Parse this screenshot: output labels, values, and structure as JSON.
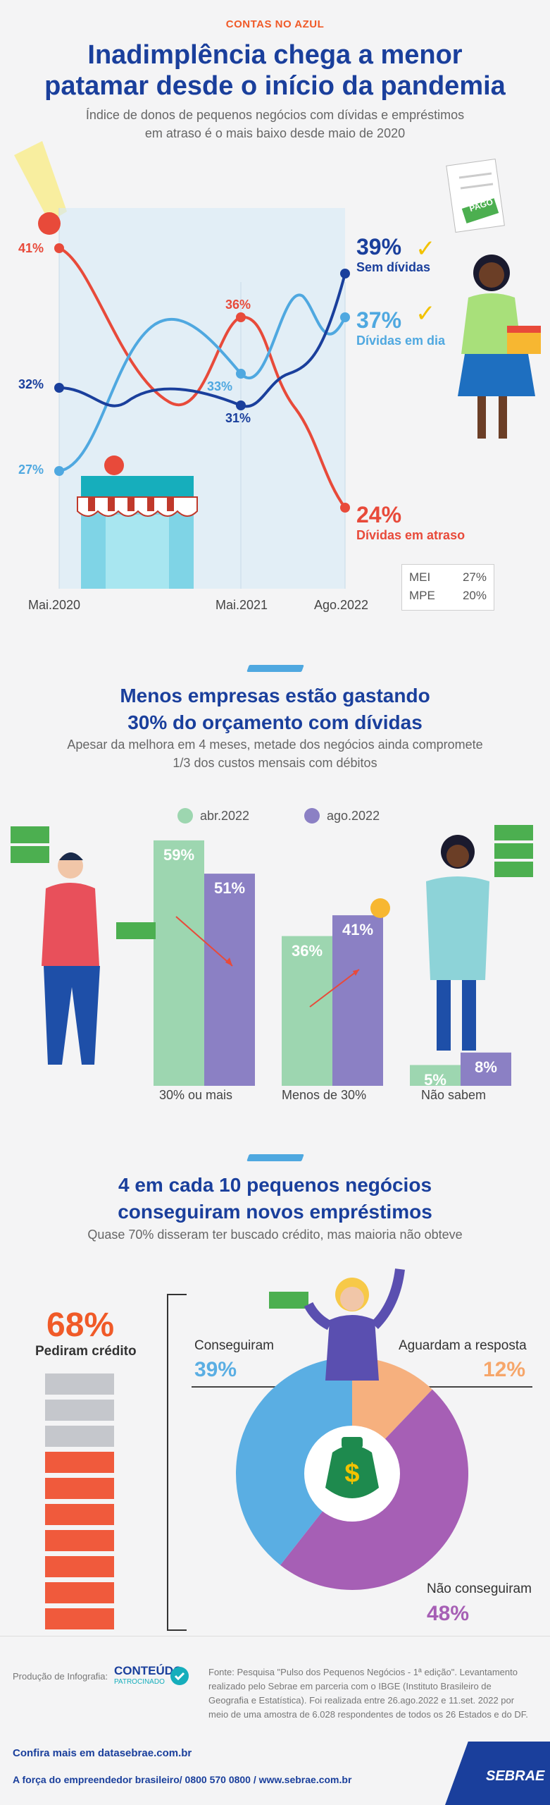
{
  "kicker": "CONTAS NO AZUL",
  "section1": {
    "title_line1": "Inadimplência chega a menor",
    "title_line2": "patamar desde o início da pandemia",
    "subtitle_line1": "Índice de donos de pequenos negócios com dívidas e empréstimos",
    "subtitle_line2": "em atraso é o mais baixo desde maio de 2020",
    "colors": {
      "sem_dividas": "#1a3f9c",
      "dividas_em_dia": "#4fa8e0",
      "dividas_em_atraso": "#e84a3a"
    },
    "labels": {
      "start_atraso": "41%",
      "start_sem": "32%",
      "start_dia": "27%",
      "mid_atraso": "36%",
      "mid_dia": "33%",
      "mid_sem": "31%",
      "end_sem_value": "39%",
      "end_sem_name": "Sem dívidas",
      "end_dia_value": "37%",
      "end_dia_name": "Dívidas em dia",
      "end_atraso_value": "24%",
      "end_atraso_name": "Dívidas em atraso"
    },
    "ticks": [
      "Mai.2020",
      "Mai.2021",
      "Ago.2022"
    ],
    "legend_box": {
      "row1_name": "MEI",
      "row1_value": "27%",
      "row2_name": "MPE",
      "row2_value": "20%"
    },
    "paid_label": "PAGO"
  },
  "chart_data": [
    {
      "type": "line",
      "x": [
        "Mai.2020",
        "Mai.2021",
        "Ago.2022"
      ],
      "series": [
        {
          "name": "Sem dívidas",
          "values": [
            32,
            31,
            39
          ]
        },
        {
          "name": "Dívidas em dia",
          "values": [
            27,
            33,
            37
          ]
        },
        {
          "name": "Dívidas em atraso",
          "values": [
            41,
            36,
            24
          ]
        }
      ]
    },
    {
      "type": "bar",
      "categories": [
        "30% ou mais",
        "Menos de 30%",
        "Não sabem"
      ],
      "series": [
        {
          "name": "abr.2022",
          "values": [
            59,
            36,
            5
          ]
        },
        {
          "name": "ago.2022",
          "values": [
            51,
            41,
            8
          ]
        }
      ]
    },
    {
      "type": "pie",
      "labels": [
        "Conseguiram",
        "Aguardam a resposta",
        "Não conseguiram"
      ],
      "values": [
        39,
        12,
        48
      ]
    }
  ],
  "section2": {
    "title_line1": "Menos empresas estão gastando",
    "title_line2": "30% do orçamento com dívidas",
    "subtitle_line1": "Apesar da melhora em 4 meses, metade dos negócios ainda compromete",
    "subtitle_line2": "1/3 dos custos mensais com débitos",
    "legend": [
      "abr.2022",
      "ago.2022"
    ],
    "colors": {
      "abr": "#9dd6b0",
      "ago": "#8b80c4"
    },
    "bars": [
      {
        "category": "30% ou mais",
        "abr": "59%",
        "ago": "51%"
      },
      {
        "category": "Menos de 30%",
        "abr": "36%",
        "ago": "41%"
      },
      {
        "category": "Não sabem",
        "abr": "5%",
        "ago": "8%"
      }
    ]
  },
  "section3": {
    "title_line1": "4 em cada 10 pequenos negócios",
    "title_line2": "conseguiram novos empréstimos",
    "subtitle": "Quase 70% disseram ter buscado crédito, mas maioria não obteve",
    "pediram_value": "68%",
    "pediram_label": "Pediram crédito",
    "conseguiram_label": "Conseguiram",
    "conseguiram_value": "39%",
    "aguardam_label": "Aguardam a resposta",
    "aguardam_value": "12%",
    "nao_label": "Não conseguiram",
    "nao_value": "48%",
    "colors": {
      "conseguiram": "#5aaee3",
      "aguardam": "#f6b07e",
      "nao": "#a65fb5"
    }
  },
  "footer": {
    "producao": "Produção de Infografia:",
    "brand_line1": "CONTEÚDO",
    "brand_line2": "PATROCINADO",
    "fonte_line1": "Fonte: Pesquisa \"Pulso dos Pequenos Negócios - 1ª edição\". Levantamento",
    "fonte_line2": "realizado pelo Sebrae em parceria com o IBGE (Instituto Brasileiro de",
    "fonte_line3": "Geografia e Estatística). Foi realizada entre 26.ago.2022 e 11.set. 2022 por",
    "fonte_line4": "meio de uma amostra de 6.028 respondentes de todos os 26 Estados e do DF.",
    "confira": "Confira mais em datasebrae.com.br",
    "contato": "A força do empreendedor brasileiro/ 0800 570 0800 / www.sebrae.com.br",
    "logo": "SEBRAE"
  }
}
